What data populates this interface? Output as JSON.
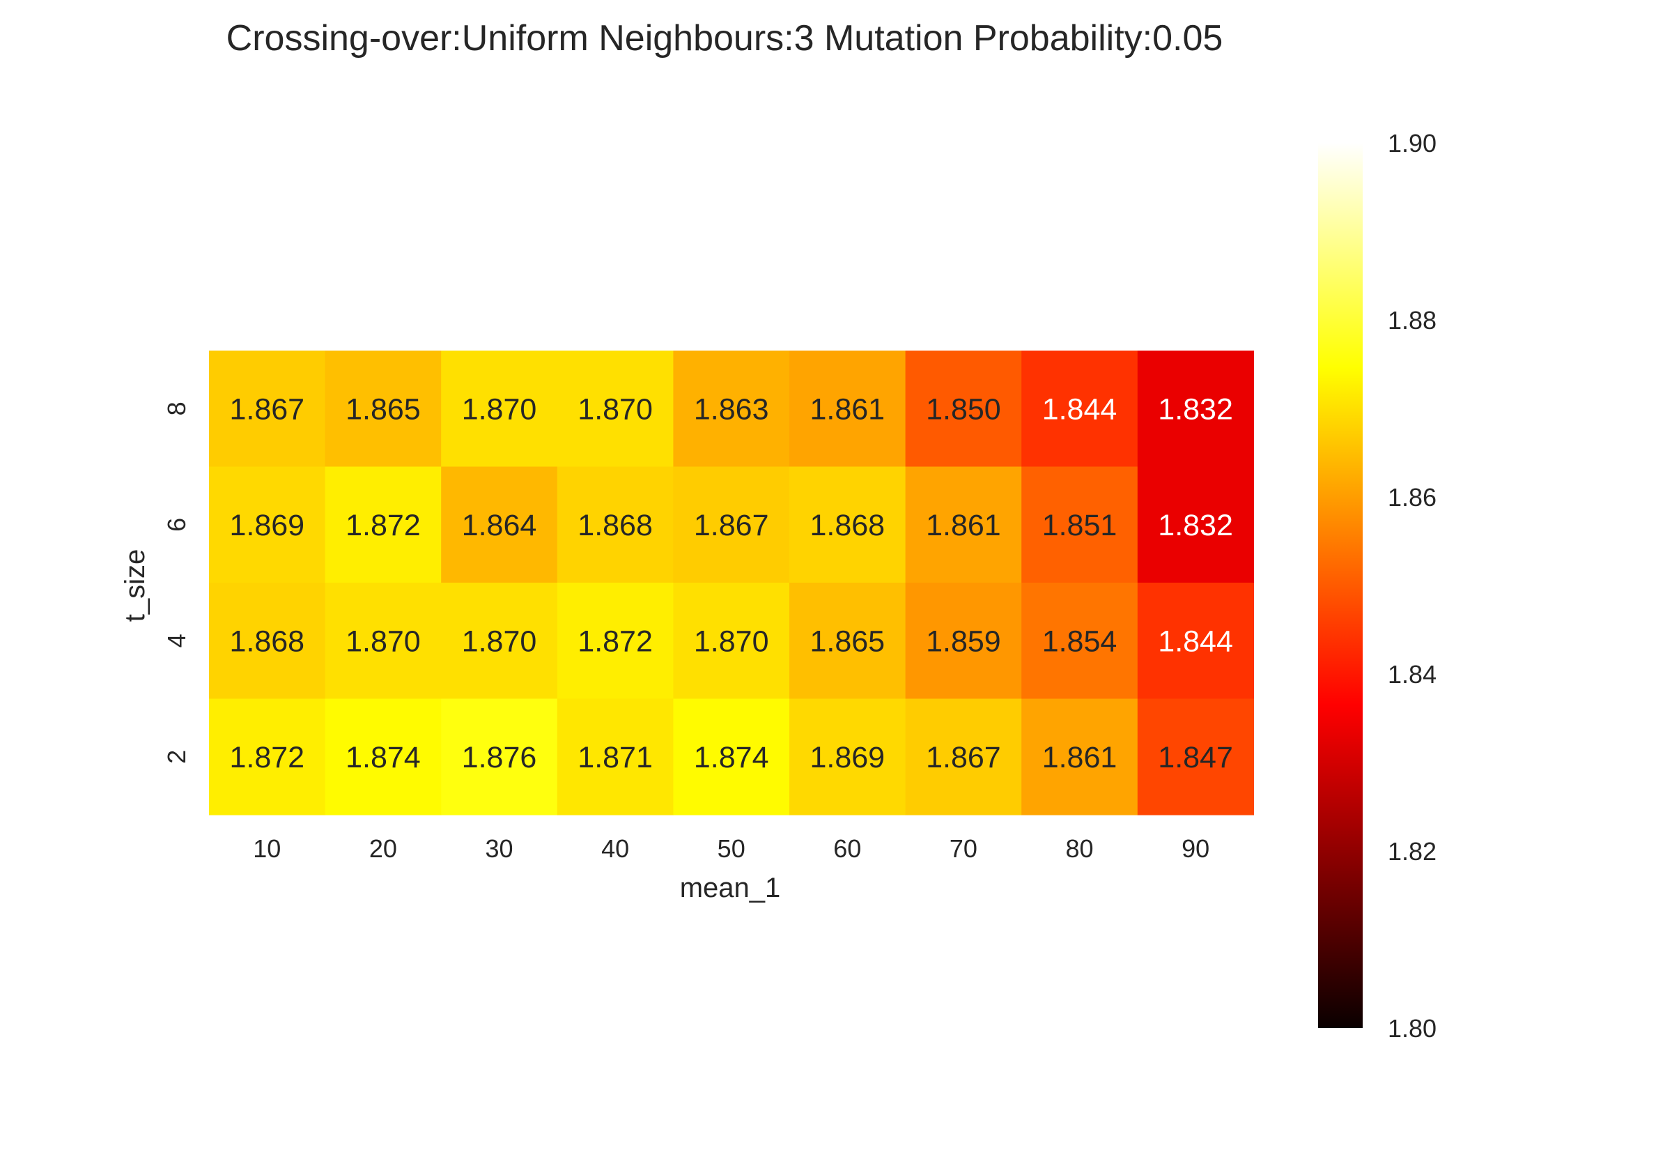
{
  "chart_data": {
    "type": "heatmap",
    "title": "Crossing-over:Uniform Neighbours:3 Mutation Probability:0.05",
    "xlabel": "mean_1",
    "ylabel": "t_size",
    "x_categories": [
      "10",
      "20",
      "30",
      "40",
      "50",
      "60",
      "70",
      "80",
      "90"
    ],
    "y_categories": [
      "8",
      "6",
      "4",
      "2"
    ],
    "values": [
      [
        1.867,
        1.865,
        1.87,
        1.87,
        1.863,
        1.861,
        1.85,
        1.844,
        1.832
      ],
      [
        1.869,
        1.872,
        1.864,
        1.868,
        1.867,
        1.868,
        1.861,
        1.851,
        1.832
      ],
      [
        1.868,
        1.87,
        1.87,
        1.872,
        1.87,
        1.865,
        1.859,
        1.854,
        1.844
      ],
      [
        1.872,
        1.874,
        1.876,
        1.871,
        1.874,
        1.869,
        1.867,
        1.861,
        1.847
      ]
    ],
    "value_labels": [
      [
        "1.867",
        "1.865",
        "1.870",
        "1.870",
        "1.863",
        "1.861",
        "1.850",
        "1.844",
        "1.832"
      ],
      [
        "1.869",
        "1.872",
        "1.864",
        "1.868",
        "1.867",
        "1.868",
        "1.861",
        "1.851",
        "1.832"
      ],
      [
        "1.868",
        "1.870",
        "1.870",
        "1.872",
        "1.870",
        "1.865",
        "1.859",
        "1.854",
        "1.844"
      ],
      [
        "1.872",
        "1.874",
        "1.876",
        "1.871",
        "1.874",
        "1.869",
        "1.867",
        "1.861",
        "1.847"
      ]
    ],
    "colormap": "hot",
    "vmin": 1.8,
    "vmax": 1.9,
    "colorbar_ticks": [
      "1.80",
      "1.82",
      "1.84",
      "1.86",
      "1.88",
      "1.90"
    ],
    "grid": false,
    "colorbar_position": "right"
  }
}
